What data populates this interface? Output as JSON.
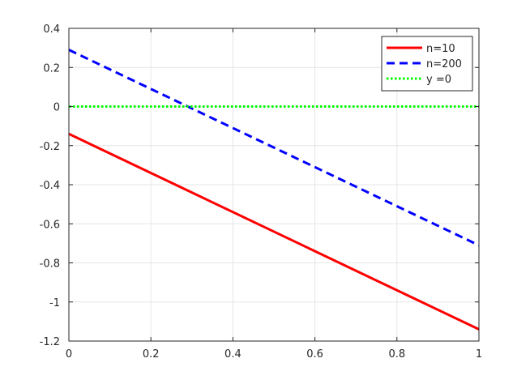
{
  "chart_data": {
    "type": "line",
    "title": "",
    "xlabel": "",
    "ylabel": "",
    "xlim": [
      0,
      1
    ],
    "ylim": [
      -1.2,
      0.4
    ],
    "xticks": [
      0,
      0.2,
      0.4,
      0.6,
      0.8,
      1
    ],
    "xtick_labels": [
      "0",
      "0.2",
      "0.4",
      "0.6",
      "0.8",
      "1"
    ],
    "yticks": [
      -1.2,
      -1,
      -0.8,
      -0.6,
      -0.4,
      -0.2,
      0,
      0.2,
      0.4
    ],
    "ytick_labels": [
      "-1.2",
      "-1",
      "-0.8",
      "-0.6",
      "-0.4",
      "-0.2",
      "0",
      "0.2",
      "0.4"
    ],
    "grid": true,
    "legend_position": "top-right",
    "series": [
      {
        "name": "n=10",
        "x": [
          0,
          1
        ],
        "y": [
          -0.14,
          -1.14
        ],
        "color": "#ff0000",
        "style": "solid"
      },
      {
        "name": "n=200",
        "x": [
          0,
          1
        ],
        "y": [
          0.29,
          -0.71
        ],
        "color": "#0000ff",
        "style": "dashed"
      },
      {
        "name": "y =0",
        "x": [
          0,
          1
        ],
        "y": [
          0,
          0
        ],
        "color": "#00ff00",
        "style": "dotted"
      }
    ]
  }
}
